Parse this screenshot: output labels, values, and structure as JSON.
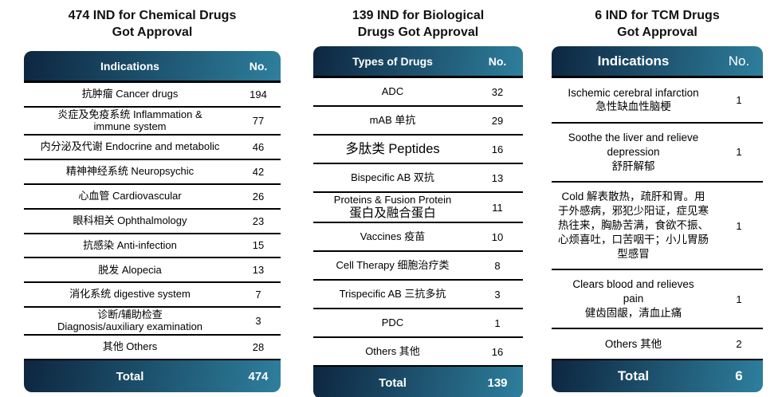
{
  "colors": {
    "header_gradient_start": "#0d2640",
    "header_gradient_end": "#2e7f9d",
    "header_text": "#ffffff",
    "body_text": "#000000",
    "separator": "#000000",
    "background": "#ffffff"
  },
  "tables": [
    {
      "id": "chemical",
      "title": "474 IND for Chemical Drugs\nGot Approval",
      "columns": {
        "label": "Indications",
        "number": "No."
      },
      "rows": [
        {
          "lines": [
            "抗肿瘤 Cancer drugs"
          ],
          "value": "194"
        },
        {
          "lines": [
            "炎症及免疫系统 Inflammation &",
            "immune system"
          ],
          "value": "77"
        },
        {
          "lines": [
            "内分泌及代谢 Endocrine and metabolic"
          ],
          "value": "46"
        },
        {
          "lines": [
            "精神神经系统 Neuropsychic"
          ],
          "value": "42"
        },
        {
          "lines": [
            "心血管 Cardiovascular"
          ],
          "value": "26"
        },
        {
          "lines": [
            "眼科相关 Ophthalmology"
          ],
          "value": "23"
        },
        {
          "lines": [
            "抗感染 Anti-infection"
          ],
          "value": "15"
        },
        {
          "lines": [
            "脱发 Alopecia"
          ],
          "value": "13"
        },
        {
          "lines": [
            "消化系统 digestive system"
          ],
          "value": "7"
        },
        {
          "lines": [
            "诊断/辅助检查",
            "Diagnosis/auxiliary examination"
          ],
          "value": "3"
        },
        {
          "lines": [
            "其他 Others"
          ],
          "value": "28"
        }
      ],
      "total": {
        "label": "Total",
        "value": "474"
      }
    },
    {
      "id": "biological",
      "title": "139 IND for Biological\nDrugs Got Approval",
      "columns": {
        "label": "Types of Drugs",
        "number": "No."
      },
      "rows": [
        {
          "lines": [
            "ADC"
          ],
          "value": "32"
        },
        {
          "lines": [
            "mAB 单抗"
          ],
          "value": "29"
        },
        {
          "lines": [
            "多肽类 Peptides"
          ],
          "value": "16",
          "emphasis": true
        },
        {
          "lines": [
            "Bispecific AB 双抗"
          ],
          "value": "13"
        },
        {
          "lines": [
            "Proteins & Fusion Protein",
            "蛋白及融合蛋白"
          ],
          "value": "11",
          "cjk_large_line": 1
        },
        {
          "lines": [
            "Vaccines 疫苗"
          ],
          "value": "10"
        },
        {
          "lines": [
            "Cell Therapy 细胞治疗类"
          ],
          "value": "8"
        },
        {
          "lines": [
            "Trispecific AB 三抗多抗"
          ],
          "value": "3"
        },
        {
          "lines": [
            "PDC"
          ],
          "value": "1"
        },
        {
          "lines": [
            "Others 其他"
          ],
          "value": "16"
        }
      ],
      "total": {
        "label": "Total",
        "value": "139"
      }
    },
    {
      "id": "tcm",
      "title": "6 IND for TCM Drugs\nGot Approval",
      "columns": {
        "label": "Indications",
        "number": "No."
      },
      "rows": [
        {
          "lines": [
            "Ischemic cerebral infarction",
            "急性缺血性脑梗"
          ],
          "value": "1"
        },
        {
          "lines": [
            "Soothe the liver and relieve",
            "depression",
            "舒肝解郁"
          ],
          "value": "1"
        },
        {
          "lines": [
            "Cold 解表散热，疏肝和胃。用于外感病，邪犯少阳证，症见寒热往来，胸胁苦满，食欲不振、心烦喜吐，口苦咽干；小儿胃肠型感冒"
          ],
          "value": "1"
        },
        {
          "lines": [
            "Clears blood and relieves",
            "pain",
            "健齿固龈，清血止痛"
          ],
          "value": "1"
        },
        {
          "lines": [
            "Others 其他"
          ],
          "value": "2"
        }
      ],
      "total": {
        "label": "Total",
        "value": "6"
      }
    }
  ]
}
